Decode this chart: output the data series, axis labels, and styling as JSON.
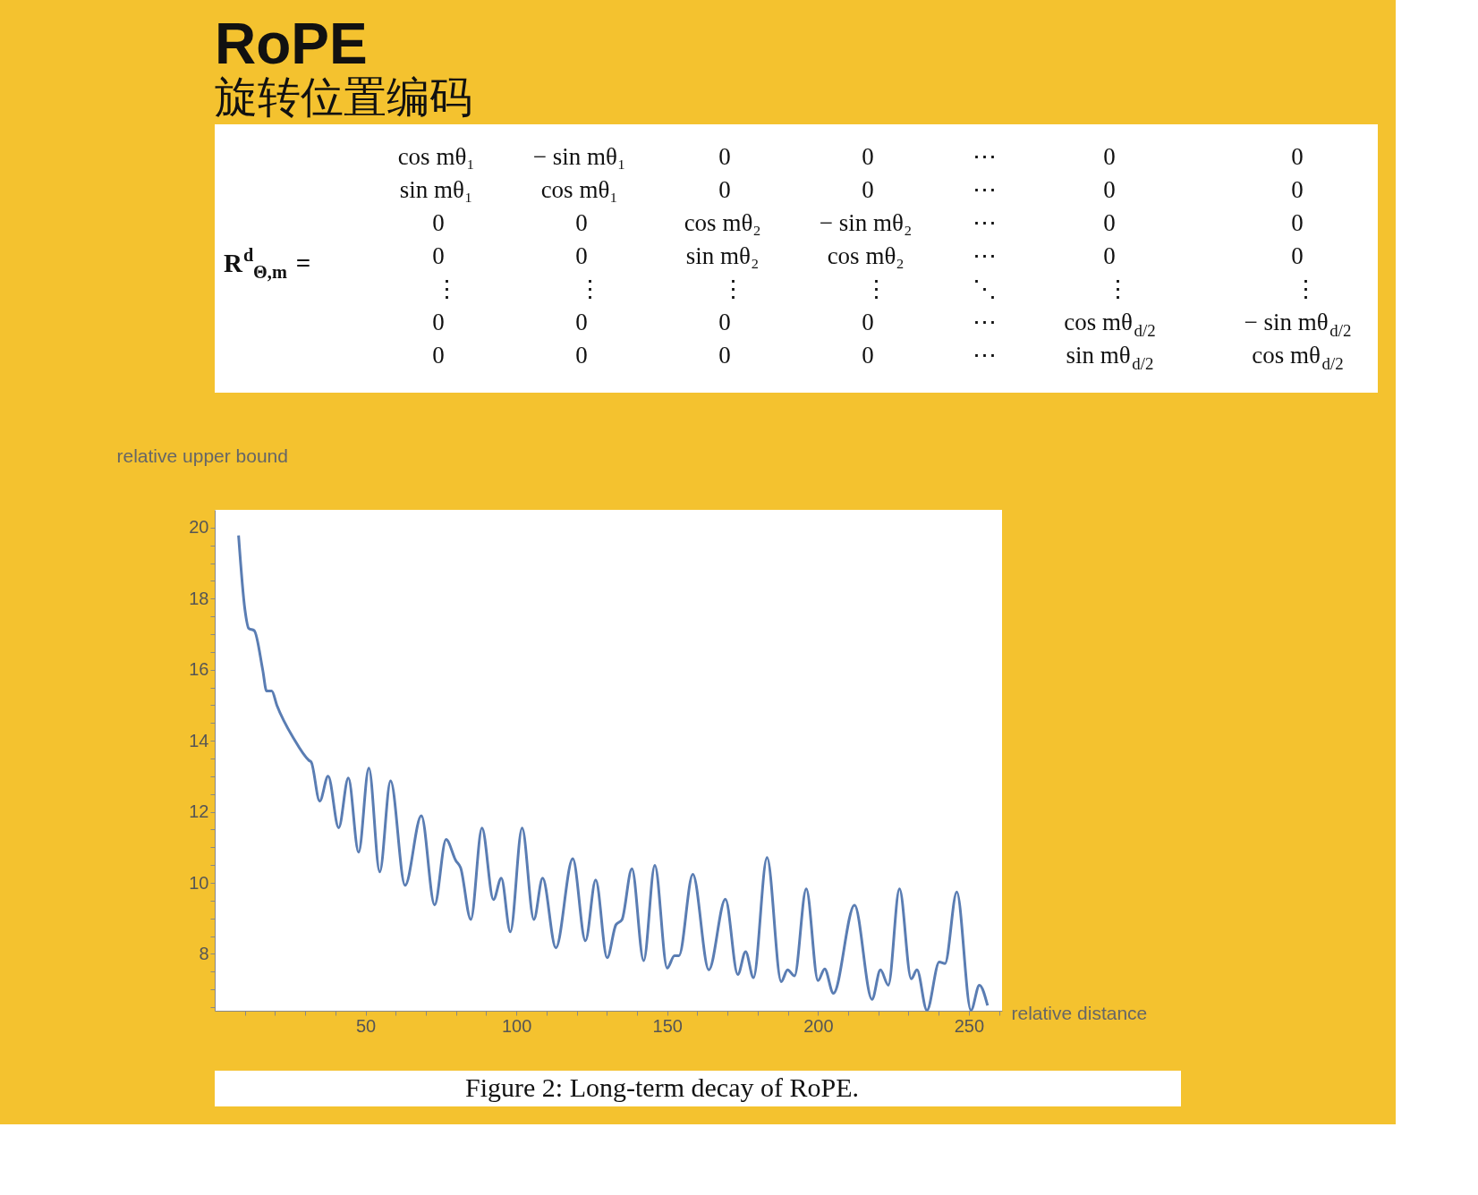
{
  "chart_data": [
    {
      "type": "other",
      "title": "RoPE",
      "subtitle": "旋转位置编码",
      "annotations": [
        "R$^{d}$$_{Θ,m}$ =",
        "cos mθ₁   − sin mθ₁   0   0   ⋯   0   0",
        "sin mθ₁   cos mθ₁   0   0   ⋯   0   0",
        "0   0   cos mθ₂   − sin mθ₂   ⋯   0   0",
        "0   0   sin mθ₂   cos mθ₂   ⋯   0   0",
        "⋮   ⋮   ⋮   ⋮   ⋱   ⋮   ⋮",
        "0   0   0   0   ⋯   cos mθ$_{d/2}$   − sin mθ$_{d/2}$",
        "0   0   0   0   ⋯   sin mθ$_{d/2}$   cos mθ$_{d/2}$"
      ]
    },
    {
      "type": "line",
      "xlabel": "relative distance",
      "ylabel": "relative upper bound",
      "annotations": [
        "Figure 2: Long-term decay of RoPE."
      ],
      "xlim": [
        0,
        261
      ],
      "ylim": [
        6.4,
        20.5
      ],
      "grid": false,
      "marker": "none",
      "line_style": "solid",
      "xticks": [
        {
          "value": 10,
          "label": null
        },
        {
          "value": 20,
          "label": null
        },
        {
          "value": 30,
          "label": null
        },
        {
          "value": 40,
          "label": null
        },
        50,
        {
          "value": 60,
          "label": null
        },
        {
          "value": 70,
          "label": null
        },
        {
          "value": 80,
          "label": null
        },
        {
          "value": 90,
          "label": null
        },
        100,
        {
          "value": 110,
          "label": null
        },
        {
          "value": 120,
          "label": null
        },
        {
          "value": 130,
          "label": null
        },
        {
          "value": 140,
          "label": null
        },
        150,
        {
          "value": 160,
          "label": null
        },
        {
          "value": 170,
          "label": null
        },
        {
          "value": 180,
          "label": null
        },
        {
          "value": 190,
          "label": null
        },
        200,
        {
          "value": 210,
          "label": null
        },
        {
          "value": 220,
          "label": null
        },
        {
          "value": 230,
          "label": null
        },
        {
          "value": 240,
          "label": null
        },
        250,
        {
          "value": 260,
          "label": null
        }
      ],
      "yticks": [
        {
          "value": 6.5,
          "label": null
        },
        {
          "value": 7,
          "label": null
        },
        {
          "value": 7.5,
          "label": null
        },
        8,
        {
          "value": 8.5,
          "label": null
        },
        {
          "value": 9,
          "label": null
        },
        {
          "value": 9.5,
          "label": null
        },
        10,
        {
          "value": 10.5,
          "label": null
        },
        {
          "value": 11,
          "label": null
        },
        {
          "value": 11.5,
          "label": null
        },
        12,
        {
          "value": 12.5,
          "label": null
        },
        {
          "value": 13,
          "label": null
        },
        {
          "value": 13.5,
          "label": null
        },
        14,
        {
          "value": 14.5,
          "label": null
        },
        {
          "value": 15,
          "label": null
        },
        {
          "value": 15.5,
          "label": null
        },
        16,
        {
          "value": 16.5,
          "label": null
        },
        {
          "value": 17,
          "label": null
        },
        {
          "value": 17.5,
          "label": null
        },
        18,
        {
          "value": 18.5,
          "label": null
        },
        {
          "value": 19,
          "label": null
        },
        {
          "value": 19.5,
          "label": null
        },
        20
      ],
      "series": [
        {
          "color": "#5a7db3",
          "x": [
            7.9,
            10,
            11.3,
            13.1,
            15.9,
            17.2,
            18.9,
            20.6,
            26.2,
            31.2,
            32,
            34.8,
            37.6,
            41.1,
            44.3,
            47.7,
            51.1,
            54.7,
            58.3,
            63.1,
            68.5,
            72.9,
            76.7,
            79.9,
            81.5,
            84.9,
            88.6,
            92.4,
            95,
            98,
            101.9,
            105.8,
            108.7,
            113.1,
            118.7,
            122.9,
            126.3,
            130.1,
            133,
            135,
            138.3,
            142.2,
            145.9,
            150,
            152.4,
            153.9,
            158.5,
            163.8,
            169.3,
            173.4,
            176,
            178.6,
            183.1,
            187.8,
            189.9,
            192.2,
            196.1,
            200,
            202.2,
            205.1,
            212.1,
            217.9,
            220.7,
            223.3,
            227,
            230.9,
            232.8,
            236.1,
            240.2,
            242.1,
            246,
            250.7,
            253.5,
            256.2
          ],
          "values": [
            19.78,
            17.7,
            17.16,
            17.1,
            16.0,
            15.4,
            15.4,
            15.0,
            14.06,
            13.45,
            13.4,
            12.3,
            13.0,
            11.55,
            12.95,
            10.86,
            13.23,
            10.31,
            12.87,
            9.93,
            11.89,
            9.38,
            11.22,
            10.63,
            10.43,
            8.97,
            11.54,
            9.53,
            10.13,
            8.62,
            11.54,
            8.97,
            10.13,
            8.17,
            10.68,
            8.37,
            10.08,
            7.89,
            8.82,
            8.96,
            10.4,
            7.81,
            10.49,
            7.6,
            7.95,
            7.95,
            10.24,
            7.55,
            9.54,
            7.42,
            8.06,
            7.33,
            10.71,
            7.22,
            7.55,
            7.38,
            9.83,
            7.25,
            7.58,
            6.89,
            9.37,
            6.72,
            7.55,
            7.12,
            9.83,
            7.3,
            7.55,
            6.41,
            7.77,
            7.73,
            9.74,
            6.41,
            7.12,
            6.55
          ]
        }
      ]
    }
  ]
}
